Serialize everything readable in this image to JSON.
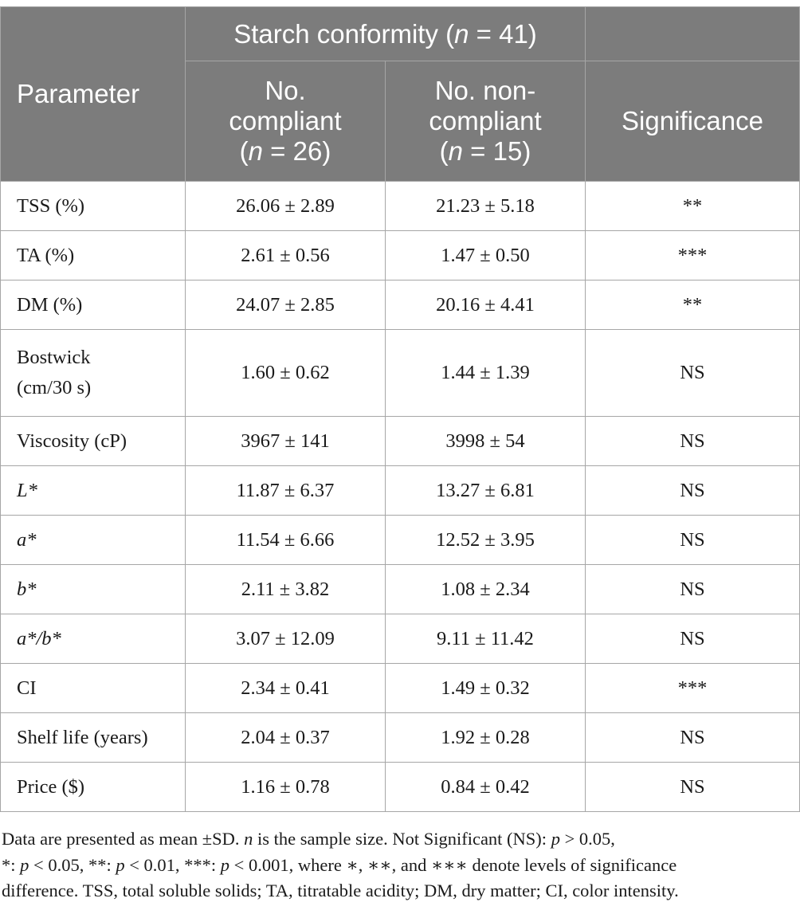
{
  "table": {
    "header": {
      "parameter": "Parameter",
      "group": {
        "prefix": "Starch conformity (",
        "n": "n",
        "suffix": " = 41)"
      },
      "compliant": {
        "line1": "No.",
        "line2": "compliant",
        "open": "(",
        "n": "n",
        "rest": " = 26)"
      },
      "noncompliant": {
        "line1": "No. non-",
        "line2": "compliant",
        "open": "(",
        "n": "n",
        "rest": " = 15)"
      },
      "significance": "Significance"
    },
    "rows": [
      {
        "parameter": "TSS (%)",
        "compliant": "26.06 ± 2.89",
        "noncompliant": "21.23 ± 5.18",
        "significance": "**"
      },
      {
        "parameter": "TA (%)",
        "compliant": "2.61 ± 0.56",
        "noncompliant": "1.47 ± 0.50",
        "significance": "***"
      },
      {
        "parameter": "DM (%)",
        "compliant": "24.07 ± 2.85",
        "noncompliant": "20.16 ± 4.41",
        "significance": "**"
      },
      {
        "parameter_line1": "Bostwick",
        "parameter_line2": "(cm/30 s)",
        "compliant": "1.60 ± 0.62",
        "noncompliant": "1.44 ± 1.39",
        "significance": "NS"
      },
      {
        "parameter": "Viscosity (cP)",
        "compliant": "3967 ± 141",
        "noncompliant": "3998 ± 54",
        "significance": "NS"
      },
      {
        "parameter": "L*",
        "compliant": "11.87 ± 6.37",
        "noncompliant": "13.27 ± 6.81",
        "significance": "NS"
      },
      {
        "parameter": "a*",
        "compliant": "11.54 ± 6.66",
        "noncompliant": "12.52 ± 3.95",
        "significance": "NS"
      },
      {
        "parameter": "b*",
        "compliant": "2.11 ± 3.82",
        "noncompliant": "1.08 ± 2.34",
        "significance": "NS"
      },
      {
        "parameter": "a*/b*",
        "compliant": "3.07 ± 12.09",
        "noncompliant": "9.11 ± 11.42",
        "significance": "NS"
      },
      {
        "parameter": "CI",
        "compliant": "2.34 ± 0.41",
        "noncompliant": "1.49 ± 0.32",
        "significance": "***"
      },
      {
        "parameter": "Shelf life (years)",
        "compliant": "2.04 ± 0.37",
        "noncompliant": "1.92 ± 0.28",
        "significance": "NS"
      },
      {
        "parameter": "Price ($)",
        "compliant": "1.16 ± 0.78",
        "noncompliant": "0.84 ± 0.42",
        "significance": "NS"
      }
    ]
  },
  "footnote": {
    "part1": "Data are presented as mean ±SD. ",
    "n": "n",
    "part2": " is the sample size. Not Significant (NS): ",
    "p1": "p",
    "part3": " > 0.05,",
    "part4": "*: ",
    "p2": "p",
    "part5": " < 0.05, **: ",
    "p3": "p",
    "part6": " < 0.01, ***: ",
    "p4": "p",
    "part7": " < 0.001, where ∗, ∗∗, and ∗∗∗ denote levels of significance",
    "part8": "difference. TSS, total soluble solids; TA, titratable acidity; DM, dry matter; CI, color intensity."
  }
}
